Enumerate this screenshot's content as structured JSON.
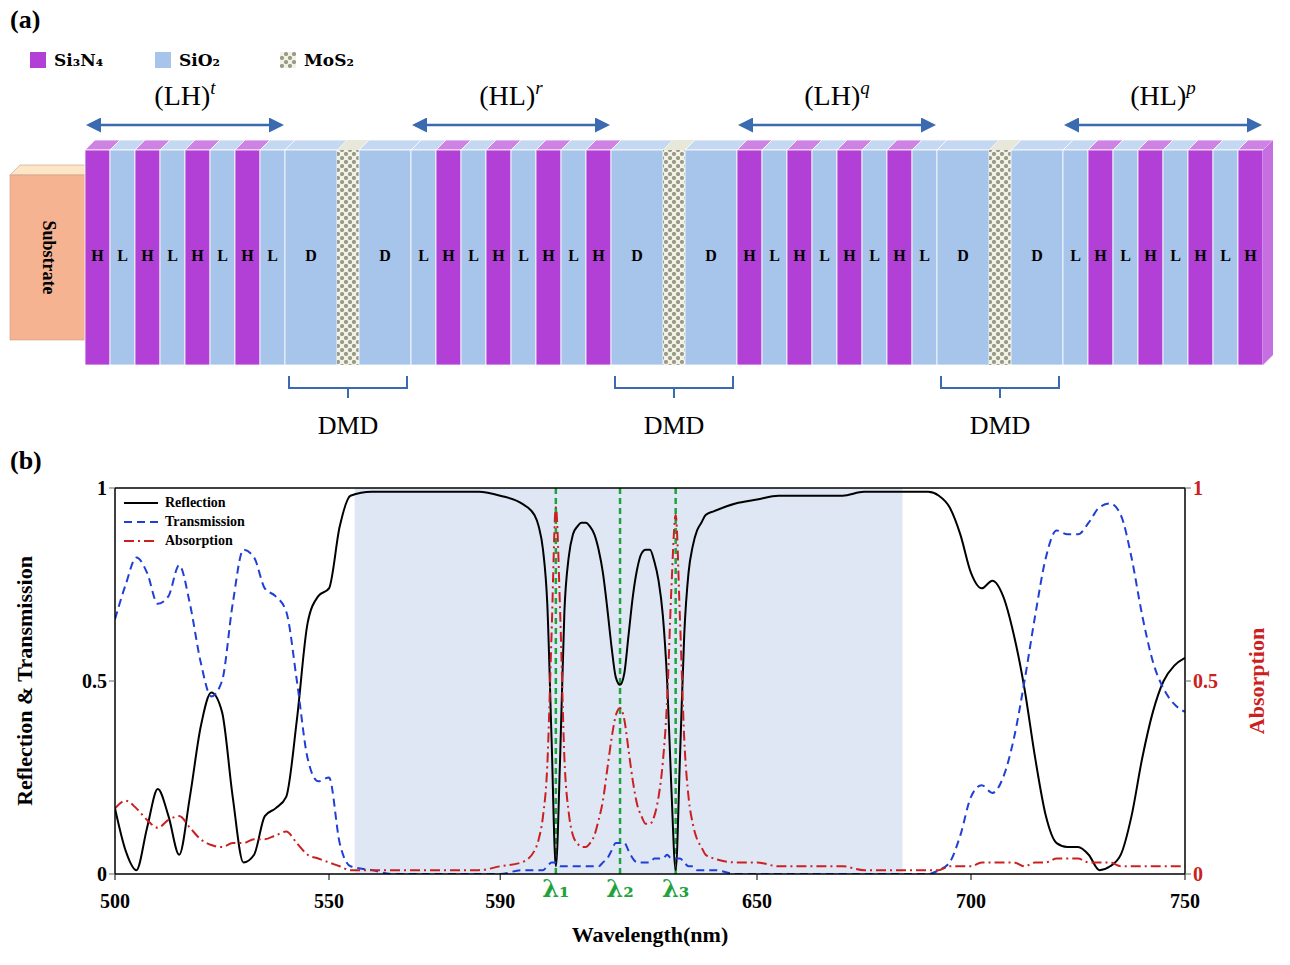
{
  "diagram": {
    "panel_label": "(a)",
    "materials": [
      {
        "name": "Si₃N₄",
        "color": "#b23fd6"
      },
      {
        "name": "SiO₂",
        "color": "#a7c4ea"
      },
      {
        "name": "MoS₂",
        "color": "#9a9a88"
      }
    ],
    "substrate": "Substrate",
    "groups": [
      {
        "bracket": {
          "base": "(LH)",
          "sup": "t"
        },
        "layers": [
          "H",
          "L",
          "H",
          "L",
          "H",
          "L",
          "H",
          "L",
          "D"
        ]
      },
      {
        "bracket": {
          "base": "(HL)",
          "sup": "r"
        },
        "layers": [
          "D",
          "L",
          "H",
          "L",
          "H",
          "L",
          "H",
          "L",
          "H",
          "D"
        ]
      },
      {
        "bracket": {
          "base": "(LH)",
          "sup": "q"
        },
        "layers": [
          "D",
          "H",
          "L",
          "H",
          "L",
          "H",
          "L",
          "H",
          "L",
          "D"
        ]
      },
      {
        "bracket": {
          "base": "(HL)",
          "sup": "p"
        },
        "layers": [
          "D",
          "L",
          "H",
          "L",
          "H",
          "L",
          "H",
          "L",
          "H"
        ]
      }
    ],
    "junctions": [
      "DMD",
      "DMD",
      "DMD"
    ]
  },
  "chart_data": {
    "type": "line",
    "panel_label": "(b)",
    "x": [
      500,
      502.5,
      505,
      507.5,
      510,
      512.5,
      515,
      517.5,
      520,
      522.5,
      525,
      527.5,
      530,
      532.5,
      535,
      537.5,
      540,
      542.5,
      545,
      547.5,
      550,
      552.5,
      555,
      560,
      565,
      570,
      575,
      580,
      585,
      590,
      595,
      598,
      599,
      600,
      601,
      602,
      603,
      604,
      605,
      606,
      607,
      608,
      609,
      610,
      611,
      612,
      613,
      614,
      615,
      616,
      617,
      618,
      619,
      620,
      621,
      622,
      623,
      624,
      625,
      626,
      627,
      628,
      629,
      630,
      631,
      632,
      633,
      634,
      635,
      636,
      637,
      638,
      640,
      645,
      650,
      655,
      660,
      665,
      670,
      675,
      680,
      685,
      690,
      692.5,
      695,
      697.5,
      700,
      702.5,
      705,
      707.5,
      710,
      712.5,
      715,
      717.5,
      720,
      722.5,
      725,
      727.5,
      730,
      732.5,
      735,
      737.5,
      740,
      742.5,
      745,
      747.5,
      750
    ],
    "series": [
      {
        "name": "Reflection",
        "color": "#000000",
        "line_style": "solid",
        "values": [
          0.17,
          0.06,
          0.01,
          0.12,
          0.22,
          0.15,
          0.05,
          0.2,
          0.38,
          0.47,
          0.42,
          0.2,
          0.03,
          0.05,
          0.15,
          0.17,
          0.2,
          0.4,
          0.65,
          0.72,
          0.74,
          0.9,
          0.98,
          0.99,
          0.99,
          0.99,
          0.99,
          0.99,
          0.99,
          0.98,
          0.96,
          0.93,
          0.9,
          0.84,
          0.7,
          0.35,
          0.02,
          0.3,
          0.68,
          0.82,
          0.88,
          0.9,
          0.91,
          0.91,
          0.9,
          0.88,
          0.84,
          0.78,
          0.69,
          0.59,
          0.51,
          0.49,
          0.52,
          0.62,
          0.72,
          0.79,
          0.83,
          0.84,
          0.84,
          0.81,
          0.76,
          0.67,
          0.5,
          0.22,
          0.01,
          0.3,
          0.62,
          0.78,
          0.85,
          0.89,
          0.91,
          0.93,
          0.94,
          0.96,
          0.97,
          0.98,
          0.98,
          0.98,
          0.98,
          0.99,
          0.99,
          0.99,
          0.99,
          0.98,
          0.95,
          0.88,
          0.78,
          0.74,
          0.76,
          0.72,
          0.62,
          0.48,
          0.3,
          0.15,
          0.08,
          0.07,
          0.07,
          0.05,
          0.01,
          0.02,
          0.05,
          0.15,
          0.3,
          0.42,
          0.5,
          0.54,
          0.56
        ]
      },
      {
        "name": "Transmission",
        "color": "#1f3fd6",
        "line_style": "dashed",
        "values": [
          0.66,
          0.75,
          0.82,
          0.78,
          0.7,
          0.72,
          0.8,
          0.7,
          0.55,
          0.46,
          0.5,
          0.7,
          0.84,
          0.82,
          0.74,
          0.72,
          0.68,
          0.5,
          0.3,
          0.24,
          0.25,
          0.08,
          0.02,
          0.01,
          0,
          0,
          0,
          0,
          0,
          0,
          0.01,
          0.01,
          0.01,
          0.01,
          0.02,
          0.03,
          0.03,
          0.02,
          0.02,
          0.02,
          0.02,
          0.02,
          0.02,
          0.02,
          0.02,
          0.02,
          0.02,
          0.03,
          0.04,
          0.06,
          0.08,
          0.08,
          0.08,
          0.06,
          0.04,
          0.03,
          0.03,
          0.03,
          0.03,
          0.04,
          0.04,
          0.04,
          0.05,
          0.04,
          0.04,
          0.04,
          0.03,
          0.02,
          0.02,
          0.01,
          0.01,
          0.01,
          0.01,
          0,
          0,
          0,
          0,
          0,
          0,
          0,
          0,
          0,
          0,
          0.01,
          0.03,
          0.1,
          0.2,
          0.23,
          0.21,
          0.25,
          0.35,
          0.5,
          0.67,
          0.82,
          0.89,
          0.88,
          0.88,
          0.91,
          0.95,
          0.96,
          0.93,
          0.82,
          0.67,
          0.55,
          0.48,
          0.44,
          0.42
        ]
      },
      {
        "name": "Absorption",
        "color": "#cc2020",
        "line_style": "dashdot",
        "axis": "y2",
        "values": [
          0.17,
          0.19,
          0.17,
          0.14,
          0.12,
          0.14,
          0.15,
          0.12,
          0.09,
          0.075,
          0.07,
          0.08,
          0.08,
          0.09,
          0.09,
          0.1,
          0.11,
          0.08,
          0.05,
          0.04,
          0.03,
          0.02,
          0.01,
          0.01,
          0.01,
          0.01,
          0.01,
          0.01,
          0.01,
          0.02,
          0.03,
          0.06,
          0.09,
          0.15,
          0.28,
          0.62,
          0.95,
          0.68,
          0.3,
          0.16,
          0.1,
          0.08,
          0.07,
          0.07,
          0.08,
          0.1,
          0.14,
          0.19,
          0.27,
          0.35,
          0.41,
          0.43,
          0.4,
          0.32,
          0.24,
          0.18,
          0.15,
          0.13,
          0.13,
          0.15,
          0.2,
          0.29,
          0.45,
          0.74,
          0.93,
          0.66,
          0.35,
          0.2,
          0.13,
          0.09,
          0.07,
          0.05,
          0.04,
          0.03,
          0.03,
          0.02,
          0.02,
          0.02,
          0.02,
          0.01,
          0.01,
          0.01,
          0.01,
          0.01,
          0.02,
          0.02,
          0.02,
          0.03,
          0.03,
          0.03,
          0.03,
          0.02,
          0.03,
          0.03,
          0.04,
          0.04,
          0.04,
          0.03,
          0.03,
          0.03,
          0.02,
          0.02,
          0.02,
          0.02,
          0.02,
          0.02,
          0.02
        ]
      }
    ],
    "xlim": [
      500,
      750
    ],
    "xticks": [
      500,
      550,
      590,
      650,
      700,
      750
    ],
    "ylim": [
      0,
      1
    ],
    "yticks": [
      0,
      0.5,
      1
    ],
    "y2lim": [
      0,
      1
    ],
    "y2ticks": [
      0,
      0.5,
      1
    ],
    "xlabel": "Wavelength(nm)",
    "ylabel": "Reflection & Transmission",
    "y2label": "Absorption",
    "legend": "upper left",
    "markers": [
      {
        "x": 603,
        "label": "λ₁",
        "color": "#1fa33c"
      },
      {
        "x": 618,
        "label": "λ₂",
        "color": "#1fa33c"
      },
      {
        "x": 631,
        "label": "λ₃",
        "color": "#1fa33c"
      }
    ],
    "highlight_range": [
      556,
      684
    ]
  }
}
